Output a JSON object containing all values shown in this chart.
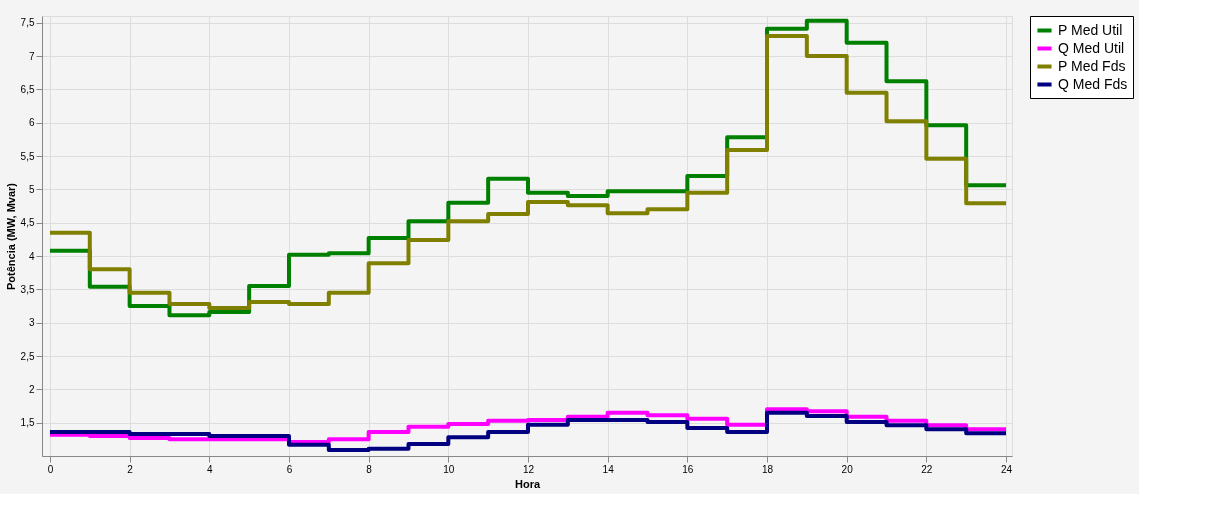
{
  "chart_data": {
    "type": "step",
    "xlabel": "Hora",
    "ylabel": "Potência (MW, Mvar)",
    "x": [
      0,
      1,
      2,
      3,
      4,
      5,
      6,
      7,
      8,
      9,
      10,
      11,
      12,
      13,
      14,
      15,
      16,
      17,
      18,
      19,
      20,
      21,
      22,
      23,
      24
    ],
    "series": [
      {
        "name": "P Med Util",
        "color": "#008000",
        "values": [
          4.08,
          3.54,
          3.25,
          3.11,
          3.16,
          3.55,
          4.02,
          4.04,
          4.27,
          4.52,
          4.8,
          5.16,
          4.95,
          4.9,
          4.97,
          4.97,
          5.2,
          5.78,
          7.41,
          7.53,
          7.2,
          6.62,
          5.96,
          5.06,
          5.06
        ]
      },
      {
        "name": "Q Med Util",
        "color": "#ff00ff",
        "values": [
          1.32,
          1.3,
          1.27,
          1.25,
          1.25,
          1.25,
          1.21,
          1.25,
          1.36,
          1.44,
          1.48,
          1.53,
          1.54,
          1.59,
          1.65,
          1.61,
          1.56,
          1.47,
          1.7,
          1.67,
          1.59,
          1.53,
          1.46,
          1.4,
          1.4
        ]
      },
      {
        "name": "P Med Fds",
        "color": "#808000",
        "values": [
          4.35,
          3.8,
          3.45,
          3.28,
          3.22,
          3.31,
          3.28,
          3.45,
          3.89,
          4.24,
          4.52,
          4.63,
          4.81,
          4.76,
          4.64,
          4.7,
          4.95,
          5.59,
          7.3,
          7.0,
          6.45,
          6.02,
          5.46,
          4.79,
          4.79
        ]
      },
      {
        "name": "Q Med Fds",
        "color": "#000080",
        "values": [
          1.36,
          1.36,
          1.33,
          1.33,
          1.3,
          1.3,
          1.17,
          1.09,
          1.11,
          1.18,
          1.28,
          1.36,
          1.47,
          1.54,
          1.54,
          1.51,
          1.42,
          1.36,
          1.65,
          1.6,
          1.51,
          1.46,
          1.4,
          1.34,
          1.34
        ]
      }
    ],
    "xlim": [
      -0.2,
      24.15
    ],
    "xticks": [
      0,
      2,
      4,
      6,
      8,
      10,
      12,
      14,
      16,
      18,
      20,
      22,
      24
    ],
    "ylim": [
      1,
      7.6
    ],
    "yticks": [
      {
        "value": 1.5,
        "label": "1,5"
      },
      2,
      {
        "value": 2.5,
        "label": "2,5"
      },
      3,
      {
        "value": 3.5,
        "label": "3,5"
      },
      4,
      {
        "value": 4.5,
        "label": "4,5"
      },
      5,
      {
        "value": 5.5,
        "label": "5,5"
      },
      6,
      {
        "value": 6.5,
        "label": "6,5"
      },
      7,
      {
        "value": 7.5,
        "label": "7,5"
      }
    ],
    "grid": true,
    "legend": "top right",
    "marker": "none",
    "line_style": "solid"
  }
}
